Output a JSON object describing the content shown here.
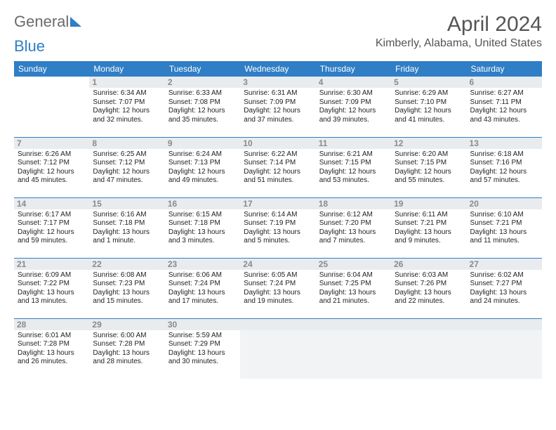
{
  "logo": {
    "part1": "General",
    "part2": "Blue"
  },
  "title": "April 2024",
  "location": "Kimberly, Alabama, United States",
  "colors": {
    "header_bg": "#2f7ec6",
    "header_fg": "#ffffff",
    "rule": "#2f7ec6",
    "daynum_bg": "#e9ecef",
    "daynum_fg": "#8a8a8a",
    "text": "#222222"
  },
  "weekdays": [
    "Sunday",
    "Monday",
    "Tuesday",
    "Wednesday",
    "Thursday",
    "Friday",
    "Saturday"
  ],
  "weeks": [
    [
      null,
      {
        "n": "1",
        "sr": "Sunrise: 6:34 AM",
        "ss": "Sunset: 7:07 PM",
        "d1": "Daylight: 12 hours",
        "d2": "and 32 minutes."
      },
      {
        "n": "2",
        "sr": "Sunrise: 6:33 AM",
        "ss": "Sunset: 7:08 PM",
        "d1": "Daylight: 12 hours",
        "d2": "and 35 minutes."
      },
      {
        "n": "3",
        "sr": "Sunrise: 6:31 AM",
        "ss": "Sunset: 7:09 PM",
        "d1": "Daylight: 12 hours",
        "d2": "and 37 minutes."
      },
      {
        "n": "4",
        "sr": "Sunrise: 6:30 AM",
        "ss": "Sunset: 7:09 PM",
        "d1": "Daylight: 12 hours",
        "d2": "and 39 minutes."
      },
      {
        "n": "5",
        "sr": "Sunrise: 6:29 AM",
        "ss": "Sunset: 7:10 PM",
        "d1": "Daylight: 12 hours",
        "d2": "and 41 minutes."
      },
      {
        "n": "6",
        "sr": "Sunrise: 6:27 AM",
        "ss": "Sunset: 7:11 PM",
        "d1": "Daylight: 12 hours",
        "d2": "and 43 minutes."
      }
    ],
    [
      {
        "n": "7",
        "sr": "Sunrise: 6:26 AM",
        "ss": "Sunset: 7:12 PM",
        "d1": "Daylight: 12 hours",
        "d2": "and 45 minutes."
      },
      {
        "n": "8",
        "sr": "Sunrise: 6:25 AM",
        "ss": "Sunset: 7:12 PM",
        "d1": "Daylight: 12 hours",
        "d2": "and 47 minutes."
      },
      {
        "n": "9",
        "sr": "Sunrise: 6:24 AM",
        "ss": "Sunset: 7:13 PM",
        "d1": "Daylight: 12 hours",
        "d2": "and 49 minutes."
      },
      {
        "n": "10",
        "sr": "Sunrise: 6:22 AM",
        "ss": "Sunset: 7:14 PM",
        "d1": "Daylight: 12 hours",
        "d2": "and 51 minutes."
      },
      {
        "n": "11",
        "sr": "Sunrise: 6:21 AM",
        "ss": "Sunset: 7:15 PM",
        "d1": "Daylight: 12 hours",
        "d2": "and 53 minutes."
      },
      {
        "n": "12",
        "sr": "Sunrise: 6:20 AM",
        "ss": "Sunset: 7:15 PM",
        "d1": "Daylight: 12 hours",
        "d2": "and 55 minutes."
      },
      {
        "n": "13",
        "sr": "Sunrise: 6:18 AM",
        "ss": "Sunset: 7:16 PM",
        "d1": "Daylight: 12 hours",
        "d2": "and 57 minutes."
      }
    ],
    [
      {
        "n": "14",
        "sr": "Sunrise: 6:17 AM",
        "ss": "Sunset: 7:17 PM",
        "d1": "Daylight: 12 hours",
        "d2": "and 59 minutes."
      },
      {
        "n": "15",
        "sr": "Sunrise: 6:16 AM",
        "ss": "Sunset: 7:18 PM",
        "d1": "Daylight: 13 hours",
        "d2": "and 1 minute."
      },
      {
        "n": "16",
        "sr": "Sunrise: 6:15 AM",
        "ss": "Sunset: 7:18 PM",
        "d1": "Daylight: 13 hours",
        "d2": "and 3 minutes."
      },
      {
        "n": "17",
        "sr": "Sunrise: 6:14 AM",
        "ss": "Sunset: 7:19 PM",
        "d1": "Daylight: 13 hours",
        "d2": "and 5 minutes."
      },
      {
        "n": "18",
        "sr": "Sunrise: 6:12 AM",
        "ss": "Sunset: 7:20 PM",
        "d1": "Daylight: 13 hours",
        "d2": "and 7 minutes."
      },
      {
        "n": "19",
        "sr": "Sunrise: 6:11 AM",
        "ss": "Sunset: 7:21 PM",
        "d1": "Daylight: 13 hours",
        "d2": "and 9 minutes."
      },
      {
        "n": "20",
        "sr": "Sunrise: 6:10 AM",
        "ss": "Sunset: 7:21 PM",
        "d1": "Daylight: 13 hours",
        "d2": "and 11 minutes."
      }
    ],
    [
      {
        "n": "21",
        "sr": "Sunrise: 6:09 AM",
        "ss": "Sunset: 7:22 PM",
        "d1": "Daylight: 13 hours",
        "d2": "and 13 minutes."
      },
      {
        "n": "22",
        "sr": "Sunrise: 6:08 AM",
        "ss": "Sunset: 7:23 PM",
        "d1": "Daylight: 13 hours",
        "d2": "and 15 minutes."
      },
      {
        "n": "23",
        "sr": "Sunrise: 6:06 AM",
        "ss": "Sunset: 7:24 PM",
        "d1": "Daylight: 13 hours",
        "d2": "and 17 minutes."
      },
      {
        "n": "24",
        "sr": "Sunrise: 6:05 AM",
        "ss": "Sunset: 7:24 PM",
        "d1": "Daylight: 13 hours",
        "d2": "and 19 minutes."
      },
      {
        "n": "25",
        "sr": "Sunrise: 6:04 AM",
        "ss": "Sunset: 7:25 PM",
        "d1": "Daylight: 13 hours",
        "d2": "and 21 minutes."
      },
      {
        "n": "26",
        "sr": "Sunrise: 6:03 AM",
        "ss": "Sunset: 7:26 PM",
        "d1": "Daylight: 13 hours",
        "d2": "and 22 minutes."
      },
      {
        "n": "27",
        "sr": "Sunrise: 6:02 AM",
        "ss": "Sunset: 7:27 PM",
        "d1": "Daylight: 13 hours",
        "d2": "and 24 minutes."
      }
    ],
    [
      {
        "n": "28",
        "sr": "Sunrise: 6:01 AM",
        "ss": "Sunset: 7:28 PM",
        "d1": "Daylight: 13 hours",
        "d2": "and 26 minutes."
      },
      {
        "n": "29",
        "sr": "Sunrise: 6:00 AM",
        "ss": "Sunset: 7:28 PM",
        "d1": "Daylight: 13 hours",
        "d2": "and 28 minutes."
      },
      {
        "n": "30",
        "sr": "Sunrise: 5:59 AM",
        "ss": "Sunset: 7:29 PM",
        "d1": "Daylight: 13 hours",
        "d2": "and 30 minutes."
      },
      null,
      null,
      null,
      null
    ]
  ]
}
